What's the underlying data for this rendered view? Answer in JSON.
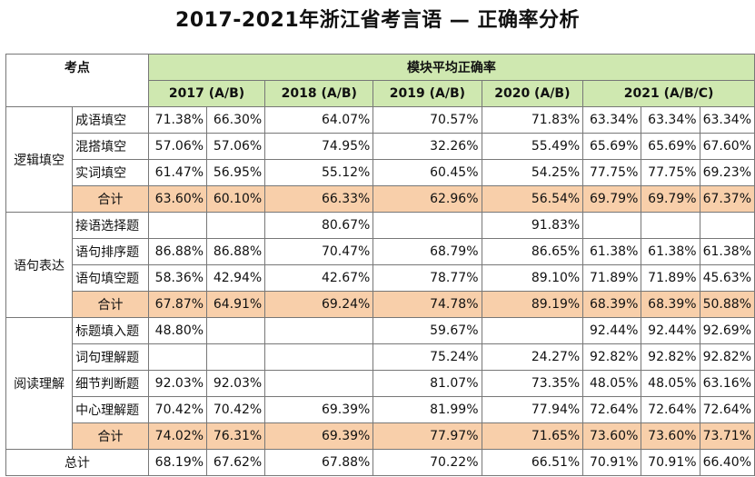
{
  "title": "2017-2021年浙江省考言语 — 正确率分析",
  "header": {
    "topic_label": "考点",
    "module_label": "模块平均正确率",
    "years": [
      "2017 (A/B)",
      "2018 (A/B)",
      "2019 (A/B)",
      "2020 (A/B)",
      "2021 (A/B/C)"
    ]
  },
  "sections": [
    {
      "category": "逻辑填空",
      "rows": [
        {
          "item": "成语填空",
          "v": [
            "71.38%",
            "66.30%",
            "64.07%",
            "70.57%",
            "71.83%",
            "63.34%",
            "63.34%",
            "63.34%"
          ]
        },
        {
          "item": "混搭填空",
          "v": [
            "57.06%",
            "57.06%",
            "74.95%",
            "32.26%",
            "55.49%",
            "65.69%",
            "65.69%",
            "67.60%"
          ]
        },
        {
          "item": "实词填空",
          "v": [
            "61.47%",
            "56.95%",
            "55.12%",
            "60.45%",
            "54.25%",
            "77.75%",
            "77.75%",
            "69.23%"
          ]
        }
      ],
      "sum": {
        "item": "合计",
        "v": [
          "63.60%",
          "60.10%",
          "66.33%",
          "62.96%",
          "56.54%",
          "69.79%",
          "69.79%",
          "67.37%"
        ]
      }
    },
    {
      "category": "语句表达",
      "rows": [
        {
          "item": "接语选择题",
          "v": [
            "",
            "",
            "80.67%",
            "",
            "91.83%",
            "",
            "",
            ""
          ]
        },
        {
          "item": "语句排序题",
          "v": [
            "86.88%",
            "86.88%",
            "70.47%",
            "68.79%",
            "86.65%",
            "61.38%",
            "61.38%",
            "61.38%"
          ]
        },
        {
          "item": "语句填空题",
          "v": [
            "58.36%",
            "42.94%",
            "42.67%",
            "78.77%",
            "89.10%",
            "71.89%",
            "71.89%",
            "45.63%"
          ]
        }
      ],
      "sum": {
        "item": "合计",
        "v": [
          "67.87%",
          "64.91%",
          "69.24%",
          "74.78%",
          "89.19%",
          "68.39%",
          "68.39%",
          "50.88%"
        ]
      }
    },
    {
      "category": "阅读理解",
      "rows": [
        {
          "item": "标题填入题",
          "v": [
            "48.80%",
            "",
            "",
            "59.67%",
            "",
            "92.44%",
            "92.44%",
            "92.69%"
          ]
        },
        {
          "item": "词句理解题",
          "v": [
            "",
            "",
            "",
            "75.24%",
            "24.27%",
            "92.82%",
            "92.82%",
            "92.82%"
          ]
        },
        {
          "item": "细节判断题",
          "v": [
            "92.03%",
            "92.03%",
            "",
            "81.07%",
            "73.35%",
            "48.05%",
            "48.05%",
            "63.16%"
          ]
        },
        {
          "item": "中心理解题",
          "v": [
            "70.42%",
            "70.42%",
            "69.39%",
            "81.99%",
            "77.94%",
            "72.64%",
            "72.64%",
            "72.64%"
          ]
        }
      ],
      "sum": {
        "item": "合计",
        "v": [
          "74.02%",
          "76.31%",
          "69.39%",
          "77.97%",
          "71.65%",
          "73.60%",
          "73.60%",
          "73.71%"
        ]
      }
    }
  ],
  "total": {
    "label": "总计",
    "v": [
      "68.19%",
      "67.62%",
      "67.88%",
      "70.22%",
      "66.51%",
      "70.91%",
      "70.91%",
      "66.40%"
    ]
  },
  "colors": {
    "header_green": "#cfe8b0",
    "sum_orange": "#f8cfaa"
  }
}
